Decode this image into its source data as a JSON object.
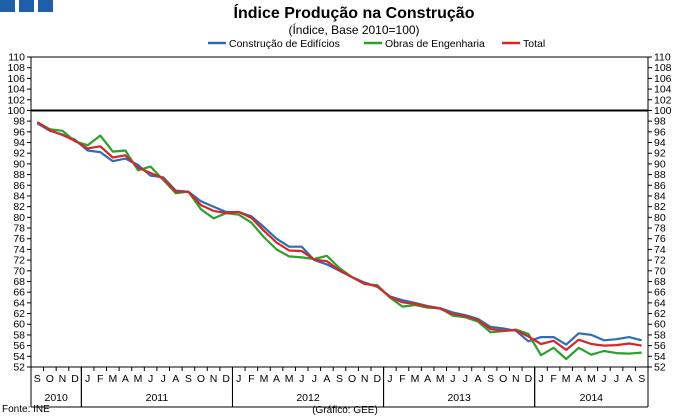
{
  "chart_data": {
    "type": "line",
    "title": "Índice Produção na Construção",
    "subtitle": "(Índice, Base 2010=100)",
    "xlabel": "",
    "ylabel": "",
    "ylim": [
      52,
      110
    ],
    "y_ticks": [
      52,
      54,
      56,
      58,
      60,
      62,
      64,
      66,
      68,
      70,
      72,
      74,
      76,
      78,
      80,
      82,
      84,
      86,
      88,
      90,
      92,
      94,
      96,
      98,
      100,
      102,
      104,
      106,
      108,
      110
    ],
    "month_labels": [
      "S",
      "O",
      "N",
      "D",
      "J",
      "F",
      "M",
      "A",
      "M",
      "J",
      "J",
      "A",
      "S",
      "O",
      "N",
      "D",
      "J",
      "F",
      "M",
      "A",
      "M",
      "J",
      "J",
      "A",
      "S",
      "O",
      "N",
      "D",
      "J",
      "F",
      "M",
      "A",
      "M",
      "J",
      "J",
      "A",
      "S",
      "O",
      "N",
      "D",
      "J",
      "F",
      "M",
      "A",
      "M",
      "J",
      "J",
      "A",
      "S"
    ],
    "years": [
      {
        "label": "2010",
        "start": 0,
        "count": 4
      },
      {
        "label": "2011",
        "start": 4,
        "count": 12
      },
      {
        "label": "2012",
        "start": 16,
        "count": 12
      },
      {
        "label": "2013",
        "start": 28,
        "count": 12
      },
      {
        "label": "2014",
        "start": 40,
        "count": 9
      }
    ],
    "reference_line": 100,
    "legend_position": "top-center",
    "series": [
      {
        "name": "Construção de Edifícios",
        "color": "#2f6db5",
        "values": [
          97.6,
          96.2,
          95.5,
          94.5,
          92.5,
          92.2,
          90.5,
          91.0,
          89.8,
          87.8,
          87.5,
          85.0,
          84.8,
          83.0,
          82.0,
          81.0,
          81.0,
          80.2,
          78.2,
          76.0,
          74.5,
          74.5,
          72.0,
          71.2,
          70.0,
          68.8,
          67.8,
          67.0,
          65.2,
          64.5,
          64.0,
          63.4,
          63.0,
          62.2,
          61.7,
          61.0,
          59.5,
          59.2,
          58.8,
          56.8,
          57.6,
          57.6,
          56.2,
          58.3,
          58.0,
          57.0,
          57.2,
          57.6,
          57.0
        ]
      },
      {
        "name": "Obras de Engenharia",
        "color": "#2ca02c",
        "values": [
          97.8,
          96.5,
          96.2,
          94.2,
          93.5,
          95.3,
          92.3,
          92.5,
          88.8,
          89.5,
          87.0,
          84.5,
          84.8,
          81.5,
          79.8,
          80.8,
          80.5,
          79.0,
          76.3,
          74.0,
          72.7,
          72.5,
          72.2,
          72.8,
          70.5,
          68.8,
          67.5,
          67.3,
          65.0,
          63.3,
          63.6,
          63.1,
          63.0,
          61.6,
          61.3,
          60.5,
          58.5,
          58.7,
          59.0,
          58.2,
          54.2,
          55.6,
          53.5,
          55.6,
          54.3,
          55.0,
          54.6,
          54.5,
          54.7
        ]
      },
      {
        "name": "Total",
        "color": "#d62728",
        "values": [
          97.8,
          96.3,
          95.4,
          94.3,
          92.9,
          93.3,
          91.2,
          91.6,
          89.3,
          88.3,
          87.3,
          84.8,
          84.8,
          82.3,
          81.2,
          80.8,
          81.0,
          79.9,
          77.5,
          75.3,
          73.8,
          73.7,
          72.1,
          71.8,
          70.1,
          68.8,
          67.6,
          67.1,
          65.1,
          64.1,
          63.8,
          63.3,
          62.9,
          61.9,
          61.5,
          60.8,
          59.1,
          58.8,
          58.9,
          57.7,
          56.3,
          56.9,
          55.2,
          57.1,
          56.3,
          56.0,
          56.1,
          56.4,
          56.0
        ]
      }
    ],
    "source": "Fonte: INE",
    "credit": "(Gráfico: GEE)"
  }
}
